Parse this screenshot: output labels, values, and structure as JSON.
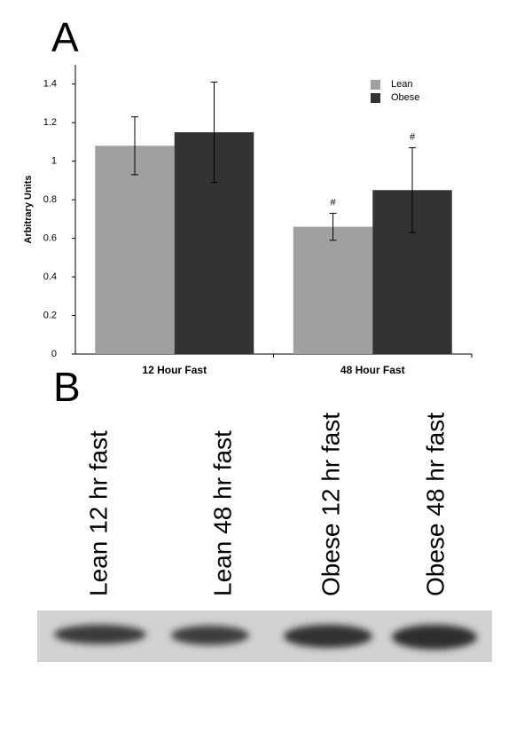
{
  "panels": [
    "A",
    "B"
  ],
  "chart_data": {
    "type": "bar",
    "ylabel": "Arbitrary Units",
    "categories": [
      "12 Hour Fast",
      "48 Hour Fast"
    ],
    "series": [
      {
        "name": "Lean",
        "color": "#a0a0a0",
        "values": [
          1.08,
          0.66
        ],
        "errors": [
          0.15,
          0.07
        ],
        "markers": [
          null,
          "#"
        ]
      },
      {
        "name": "Obese",
        "color": "#333333",
        "values": [
          1.15,
          0.85
        ],
        "errors": [
          0.26,
          0.22
        ],
        "markers": [
          null,
          "#"
        ]
      }
    ],
    "ylim": [
      0,
      1.5
    ],
    "yticks": [
      0,
      0.2,
      0.4,
      0.6,
      0.8,
      1,
      1.2,
      1.4
    ],
    "grid": false,
    "legend": "top-right"
  },
  "blot": {
    "lanes": [
      "Lean 12 hr fast",
      "Lean 48 hr fast",
      "Obese 12 hr fast",
      "Obese 48 hr fast"
    ]
  }
}
